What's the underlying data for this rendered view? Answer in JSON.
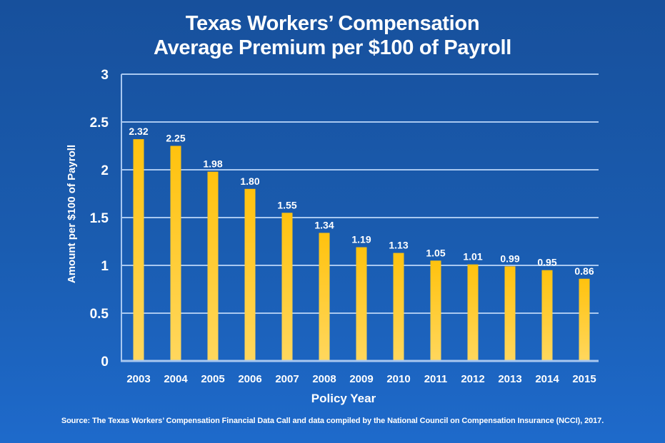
{
  "chart_data": {
    "type": "bar",
    "title": "Texas Workers’ Compensation",
    "subtitle": "Average Premium per $100 of Payroll",
    "xlabel": "Policy Year",
    "ylabel": "Amount per $100 of Payroll",
    "categories": [
      "2003",
      "2004",
      "2005",
      "2006",
      "2007",
      "2008",
      "2009",
      "2010",
      "2011",
      "2012",
      "2013",
      "2014",
      "2015"
    ],
    "values": [
      2.32,
      2.25,
      1.98,
      1.8,
      1.55,
      1.34,
      1.19,
      1.13,
      1.05,
      1.01,
      0.99,
      0.95,
      0.86
    ],
    "data_labels": [
      "2.32",
      "2.25",
      "1.98",
      "1.80",
      "1.55",
      "1.34",
      "1.19",
      "1.13",
      "1.05",
      "1.01",
      "0.99",
      "0.95",
      "0.86"
    ],
    "ylim": [
      0,
      3
    ],
    "yticks": [
      0,
      0.5,
      1,
      1.5,
      2,
      2.5,
      3
    ],
    "ytick_labels": [
      "0",
      "0.5",
      "1",
      "1.5",
      "2",
      "2.5",
      "3"
    ],
    "grid": true,
    "legend": "none",
    "colors": {
      "bar_top": "#ffc20e",
      "bar_bottom": "#ffd75e",
      "grid": "#a9c8f0",
      "text": "#ffffff"
    }
  },
  "source": "Source: The Texas Workers’ Compensation Financial Data Call and data compiled by the National Council on Compensation Insurance (NCCI), 2017."
}
